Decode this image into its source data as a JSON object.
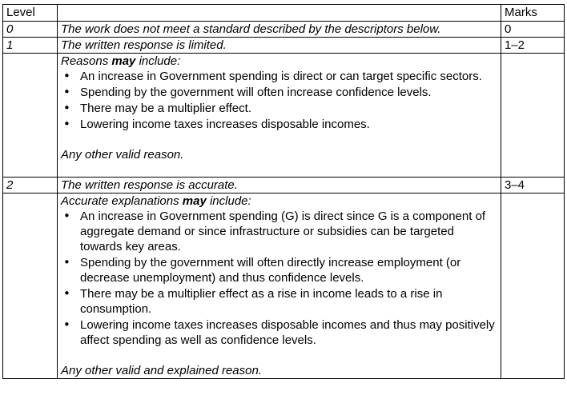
{
  "header": {
    "level": "Level",
    "descriptor": "",
    "marks": "Marks"
  },
  "rows": [
    {
      "level": "0",
      "descriptor": "The work does not meet a standard described by the descriptors below.",
      "marks": "0"
    },
    {
      "level": "1",
      "descriptor": "The written response is limited.",
      "marks": "1–2"
    },
    {
      "level": "2",
      "descriptor": "The written response is accurate.",
      "marks": "3–4"
    }
  ],
  "level1_notes": {
    "intro_before": "Reasons ",
    "intro_emph": "may",
    "intro_after": " include:",
    "points": [
      "An increase in Government spending is direct or can target specific sectors.",
      "Spending by the government will often increase confidence levels.",
      "There may be a multiplier effect.",
      "Lowering income taxes increases disposable incomes."
    ],
    "closing": "Any other valid reason."
  },
  "level2_notes": {
    "intro_before": "Accurate explanations ",
    "intro_emph": "may",
    "intro_after": " include:",
    "points": [
      "An increase in Government spending (G) is direct since G is a component of aggregate demand or since infrastructure or subsidies can be targeted towards key areas.",
      "Spending by the government will often directly increase employment (or decrease unemployment) and thus confidence levels.",
      "There may be a multiplier effect as a rise in income leads to a rise in consumption.",
      "Lowering income taxes increases disposable incomes and thus may positively affect spending as well as confidence levels."
    ],
    "closing": "Any other valid and explained reason."
  }
}
